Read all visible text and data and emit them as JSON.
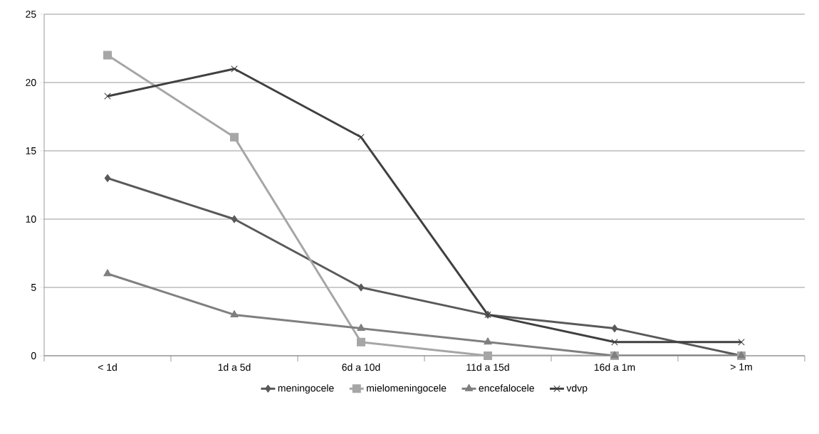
{
  "chart_data": {
    "type": "line",
    "categories": [
      "< 1d",
      "1d a 5d",
      "6d a 10d",
      "11d a 15d",
      "16d a 1m",
      "> 1m"
    ],
    "series": [
      {
        "name": "meningocele",
        "color": "#595959",
        "marker": "diamond",
        "values": [
          13,
          10,
          5,
          3,
          2,
          0
        ]
      },
      {
        "name": "mielomeningocele",
        "color": "#a6a6a6",
        "marker": "square",
        "values": [
          22,
          16,
          1,
          0,
          0,
          0
        ]
      },
      {
        "name": "encefalocele",
        "color": "#7f7f7f",
        "marker": "triangle",
        "values": [
          6,
          3,
          2,
          1,
          0,
          0
        ]
      },
      {
        "name": "vdvp",
        "color": "#404040",
        "marker": "cross",
        "values": [
          19,
          21,
          16,
          3,
          1,
          1
        ]
      }
    ],
    "ylim": [
      0,
      25
    ],
    "yticks": [
      0,
      5,
      10,
      15,
      20,
      25
    ],
    "grid": "y",
    "legend": "bottom",
    "line_style": "solid"
  }
}
